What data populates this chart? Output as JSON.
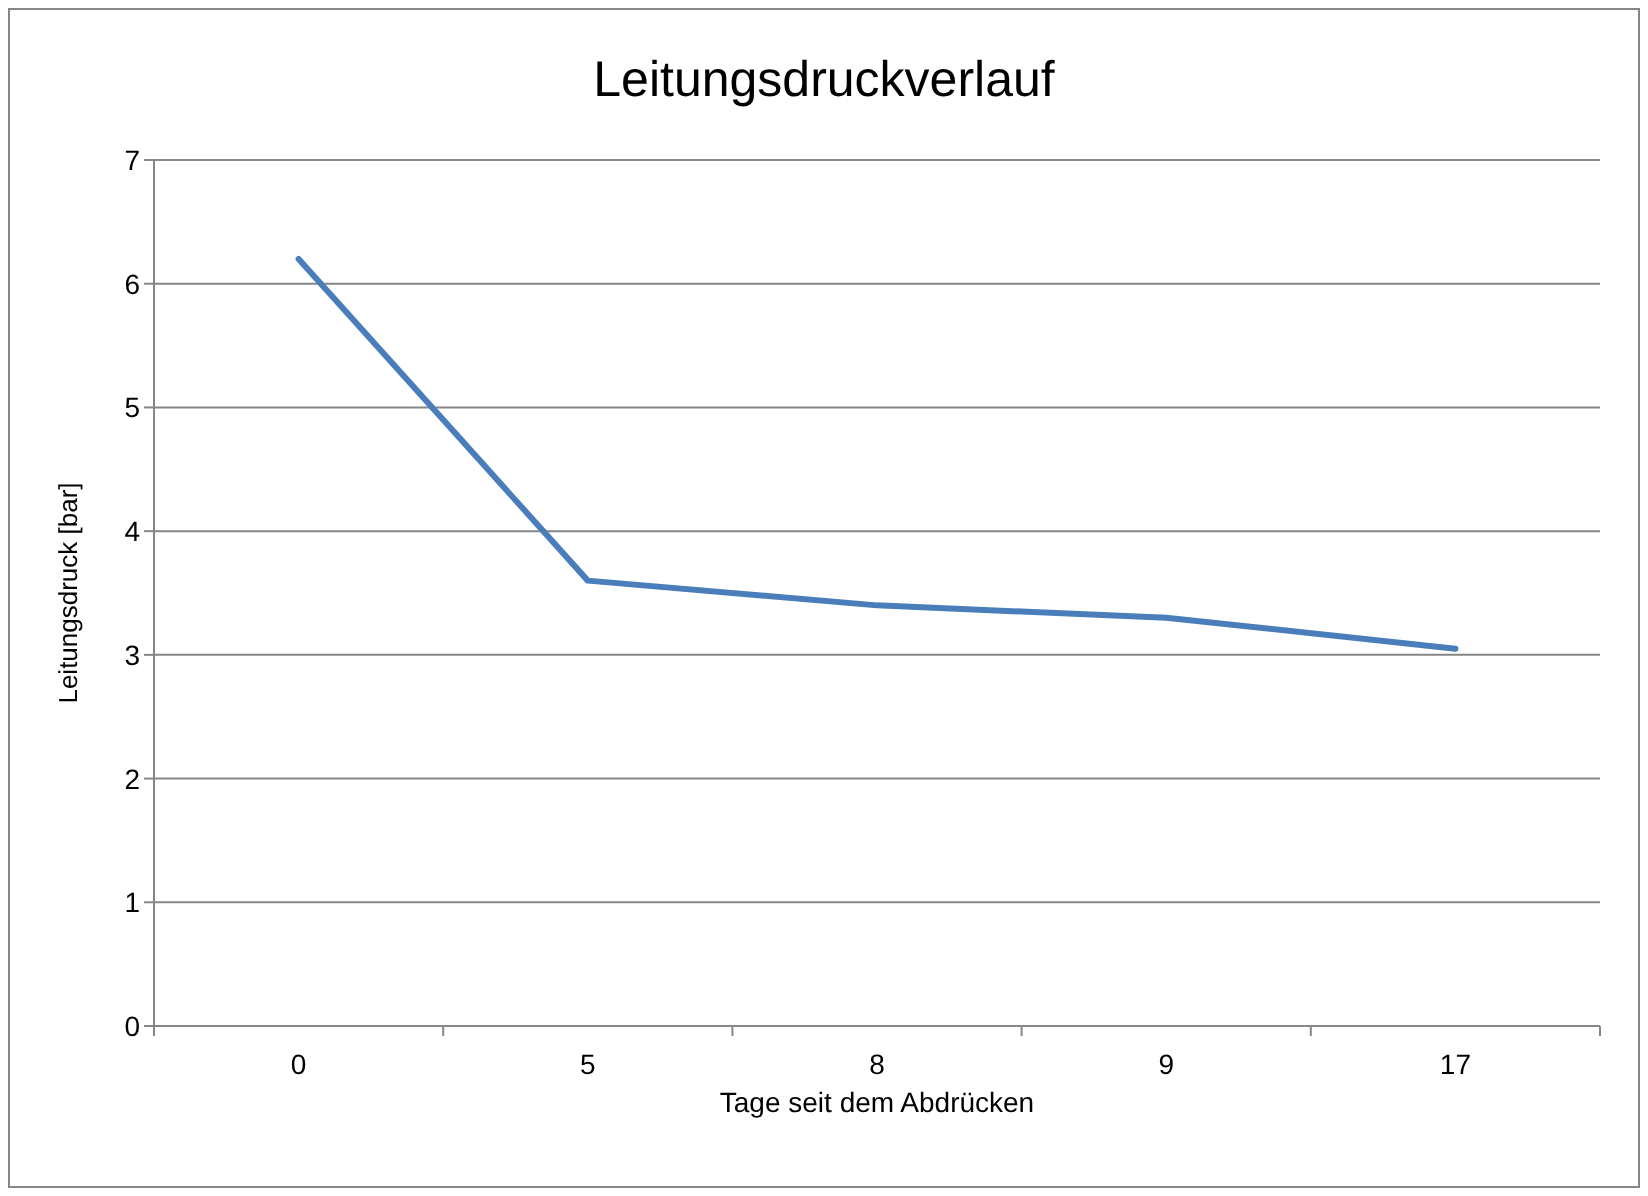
{
  "chart_data": {
    "type": "line",
    "title": "Leitungsdruckverlauf",
    "xlabel": "Tage seit dem Abdrücken",
    "ylabel": "Leitungsdruck [bar]",
    "categories": [
      "0",
      "5",
      "8",
      "9",
      "17"
    ],
    "series": [
      {
        "color": "#4a7ebb",
        "values": [
          6.2,
          3.6,
          3.4,
          3.3,
          3.05
        ]
      }
    ],
    "ylim": [
      0,
      7
    ],
    "yticks": [
      0,
      1,
      2,
      3,
      4,
      5,
      6,
      7
    ],
    "grid": "y",
    "marker": "none",
    "line_style": "solid"
  }
}
